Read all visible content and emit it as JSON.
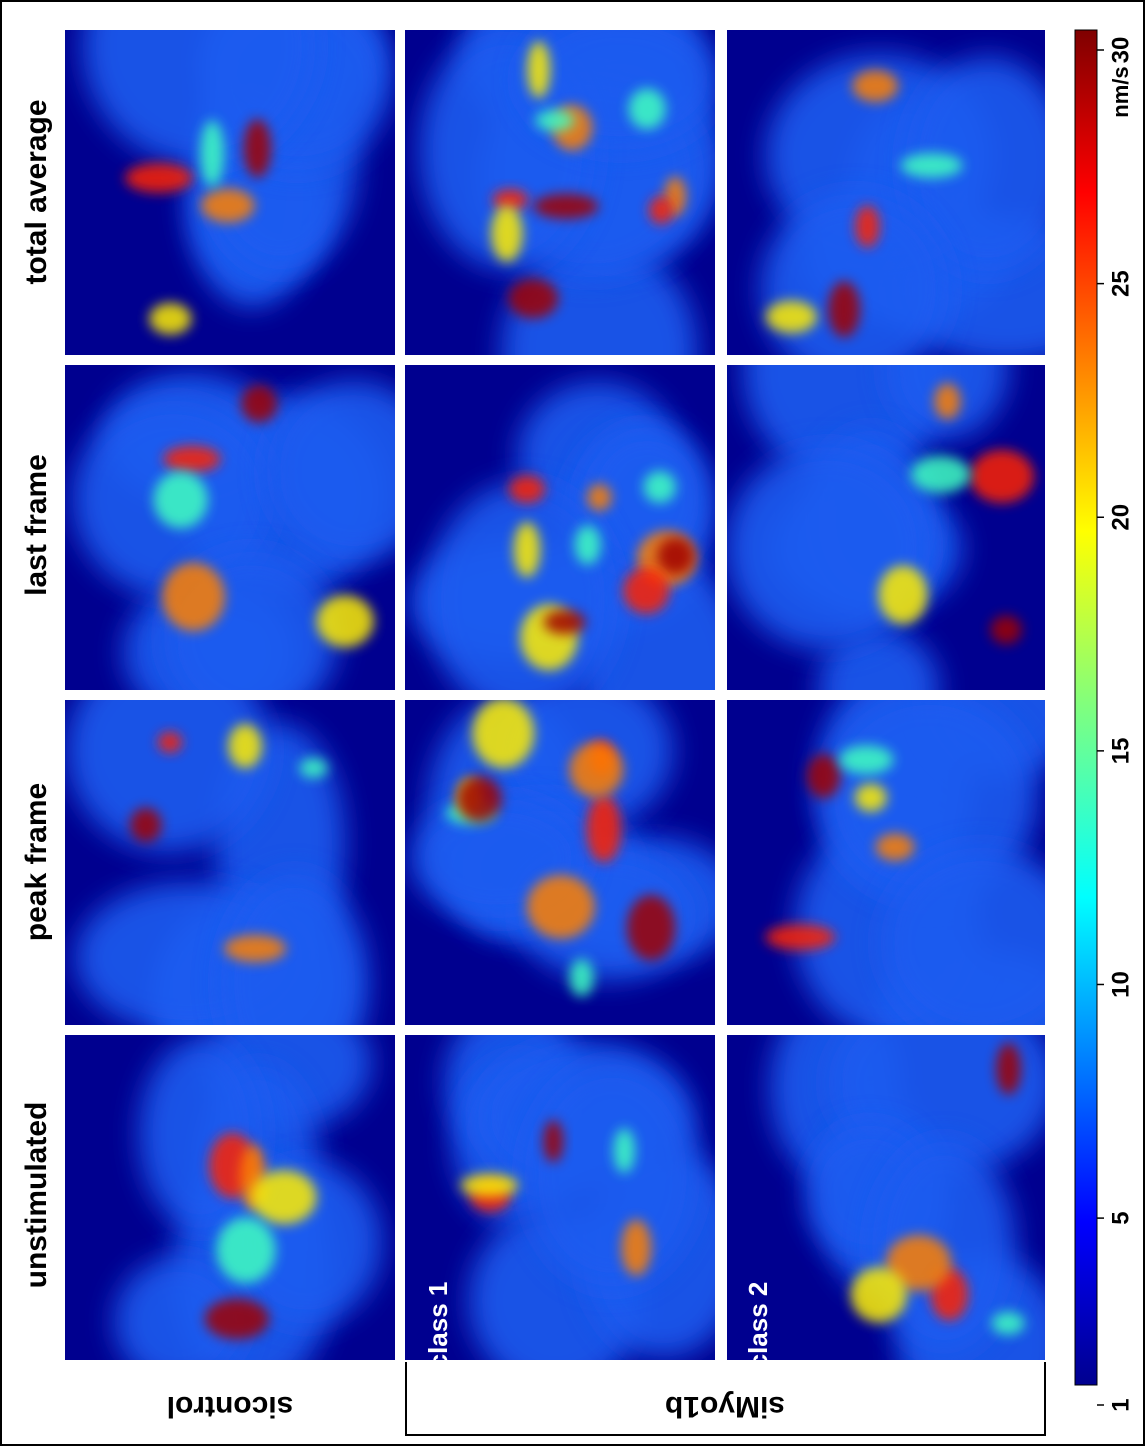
{
  "columns": [
    "unstimulated",
    "peak frame",
    "last frame",
    "total average"
  ],
  "rows": [
    "sicontrol",
    "siMyo1b"
  ],
  "panel_labels": [
    "class 1",
    "class 2"
  ],
  "colorbar": {
    "unit": "nm/s",
    "lim": [
      1,
      30
    ],
    "ticks": [
      1,
      5,
      10,
      15,
      20,
      25,
      30
    ]
  }
}
